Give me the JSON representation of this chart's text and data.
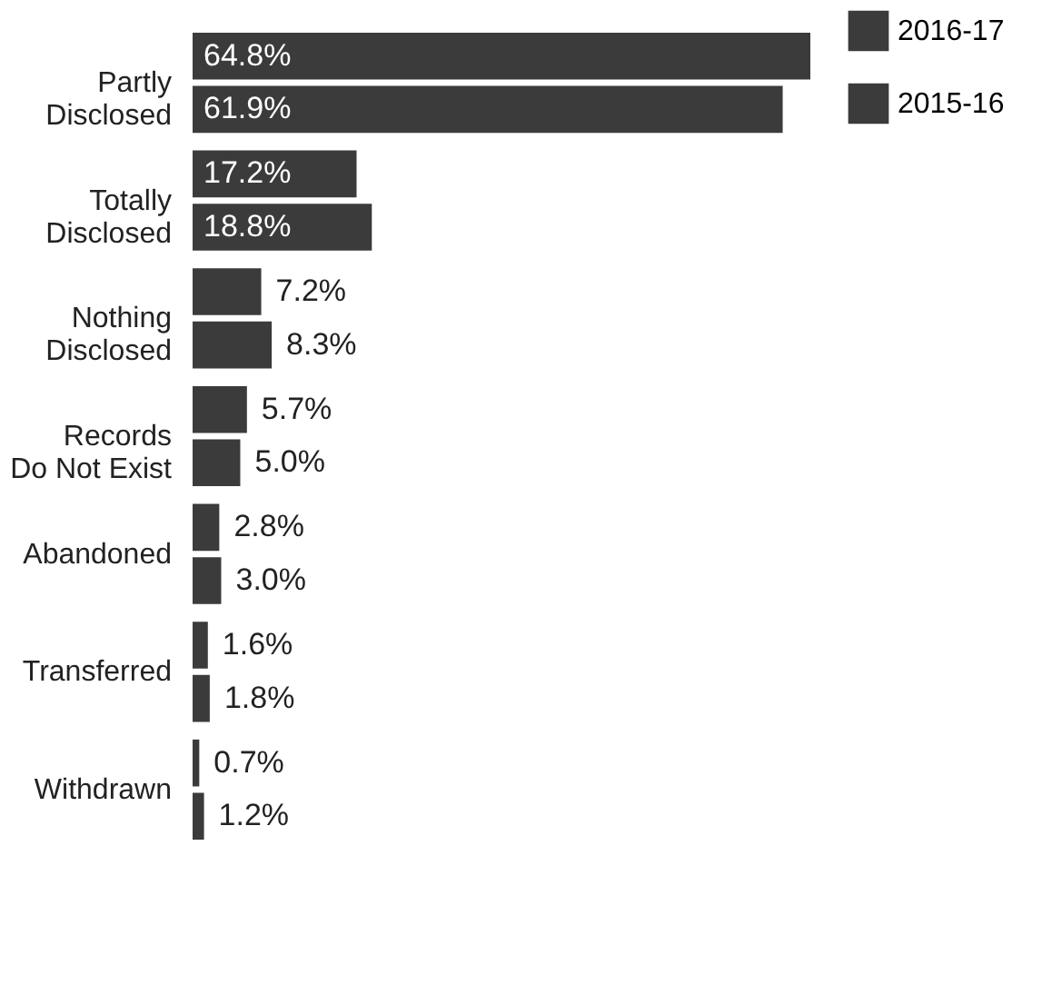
{
  "chart_data": {
    "type": "bar",
    "orientation": "horizontal",
    "categories": [
      "Partly\nDisclosed",
      "Totally\nDisclosed",
      "Nothing\nDisclosed",
      "Records\nDo Not Exist",
      "Abandoned",
      "Transferred",
      "Withdrawn"
    ],
    "series": [
      {
        "name": "2016-17",
        "color": "#3b3b3b",
        "values": [
          64.8,
          17.2,
          7.2,
          5.7,
          2.8,
          1.6,
          0.7
        ],
        "value_labels": [
          "64.8%",
          "17.2%",
          "7.2%",
          "5.7%",
          "2.8%",
          "1.6%",
          "0.7%"
        ]
      },
      {
        "name": "2015-16",
        "color": "#3b3b3b",
        "values": [
          61.9,
          18.8,
          8.3,
          5.0,
          3.0,
          1.8,
          1.2
        ],
        "value_labels": [
          "61.9%",
          "18.8%",
          "8.3%",
          "5.0%",
          "3.0%",
          "1.8%",
          "1.2%"
        ]
      }
    ],
    "legend": "right",
    "tick_labels": "y"
  }
}
